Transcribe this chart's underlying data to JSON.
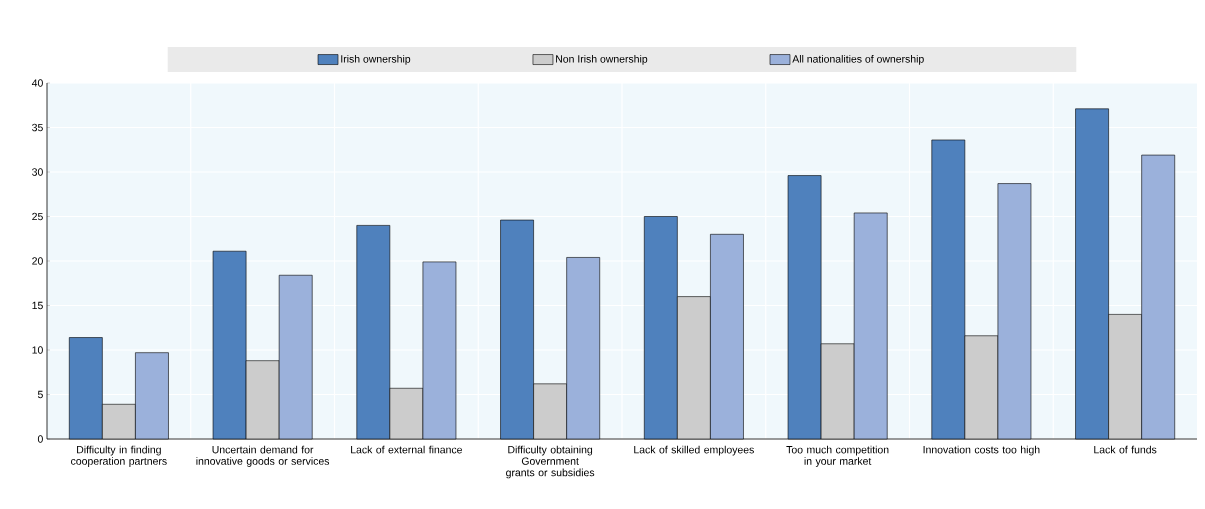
{
  "chart_data": {
    "type": "bar",
    "categories": [
      "Difficulty in finding cooperation partners",
      "Uncertain demand for innovative goods or services",
      "Lack of external finance",
      "Difficulty obtaining Government grants or subsidies",
      "Lack of skilled employees",
      "Too much competition in your market",
      "Innovation costs too high",
      "Lack of funds"
    ],
    "series": [
      {
        "name": "Irish ownership",
        "color": "#4f81bd",
        "values": [
          11.4,
          21.1,
          24.0,
          24.6,
          25.0,
          29.6,
          33.6,
          37.1
        ]
      },
      {
        "name": "Non Irish ownership",
        "color": "#cccccc",
        "values": [
          3.9,
          8.8,
          5.7,
          6.2,
          16.0,
          10.7,
          11.6,
          14.0
        ]
      },
      {
        "name": "All nationalities of ownership",
        "color": "#9bb1db",
        "values": [
          9.7,
          18.4,
          19.9,
          20.4,
          23.0,
          25.4,
          28.7,
          31.9
        ]
      }
    ],
    "ylim": [
      0,
      40
    ],
    "yticks": [
      0,
      5,
      10,
      15,
      20,
      25,
      30,
      35,
      40
    ],
    "grid": true,
    "legend": "top"
  }
}
